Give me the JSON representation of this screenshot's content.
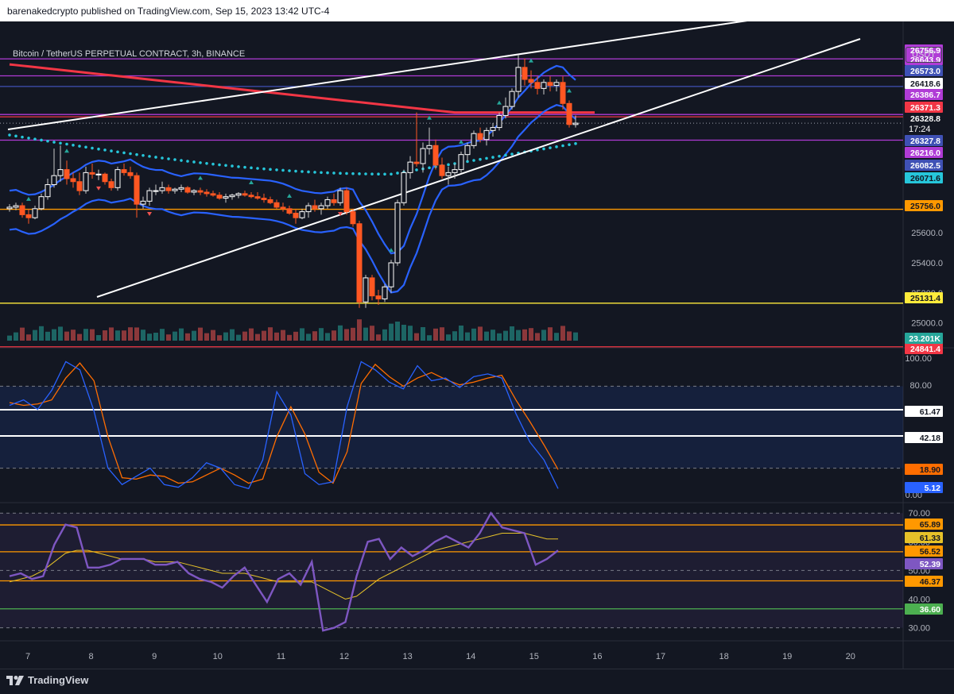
{
  "header": {
    "published_line": "barenakedcrypto published on TradingView.com, Sep 15, 2023 13:42 UTC-4"
  },
  "chart": {
    "symbol_title": "Bitcoin / TetherUS PERPETUAL CONTRACT, 3h, BINANCE",
    "currency_button": "USDT",
    "countdown": "17:24"
  },
  "footer": {
    "brand": "TradingView"
  },
  "colors": {
    "background": "#131722",
    "candle_up": "#ffffff",
    "candle_down": "#ff5722",
    "volume_up": "#26a69a",
    "volume_down": "#ef5350",
    "ma_red": "#f23645",
    "band_blue": "#2962ff",
    "dots_cyan": "#26c6da",
    "stoch_k": "#2962ff",
    "stoch_d": "#ff6d00",
    "rsi": "#7e57c2",
    "rsi_ma": "#e6c229",
    "level_magenta": "#b03bd6",
    "level_orange": "#ff9800",
    "level_yellow": "#ffeb3b",
    "level_green": "#4caf50"
  },
  "chart_data": [
    {
      "type": "candlestick",
      "title": "Bitcoin / TetherUS PERPETUAL CONTRACT, 3h, BINANCE",
      "x_ticks": [
        "7",
        "8",
        "9",
        "10",
        "11",
        "12",
        "13",
        "14",
        "15",
        "16",
        "17",
        "18",
        "19",
        "20"
      ],
      "y_ticks": [
        "25000.0",
        "25200.0",
        "25400.0",
        "25600.0",
        "25800.0"
      ],
      "ylim": [
        24840,
        26900
      ],
      "last_close": 26328.8,
      "ohlc": [
        [
          25760,
          25790,
          25740,
          25770
        ],
        [
          25770,
          25800,
          25750,
          25780
        ],
        [
          25780,
          25800,
          25700,
          25720
        ],
        [
          25720,
          25760,
          25660,
          25700
        ],
        [
          25700,
          25780,
          25690,
          25760
        ],
        [
          25760,
          25860,
          25750,
          25840
        ],
        [
          25840,
          25960,
          25820,
          25920
        ],
        [
          25920,
          26160,
          25900,
          25980
        ],
        [
          25980,
          26180,
          25940,
          26020
        ],
        [
          26020,
          26080,
          25920,
          25960
        ],
        [
          25960,
          26000,
          25900,
          25940
        ],
        [
          25940,
          26000,
          25850,
          25880
        ],
        [
          25880,
          26040,
          25860,
          26000
        ],
        [
          26000,
          26060,
          25960,
          25990
        ],
        [
          25990,
          26020,
          25950,
          25990
        ],
        [
          25990,
          26000,
          25920,
          25940
        ],
        [
          25940,
          25960,
          25880,
          25900
        ],
        [
          25900,
          26040,
          25880,
          26020
        ],
        [
          26020,
          26060,
          25980,
          26000
        ],
        [
          26000,
          26040,
          25960,
          25980
        ],
        [
          25980,
          26000,
          25700,
          25790
        ],
        [
          25790,
          25840,
          25760,
          25810
        ],
        [
          25810,
          25900,
          25780,
          25880
        ],
        [
          25880,
          25920,
          25850,
          25880
        ],
        [
          25880,
          25940,
          25860,
          25900
        ],
        [
          25900,
          25920,
          25860,
          25880
        ],
        [
          25880,
          25900,
          25860,
          25890
        ],
        [
          25890,
          25920,
          25870,
          25900
        ],
        [
          25900,
          25910,
          25860,
          25870
        ],
        [
          25870,
          25890,
          25850,
          25880
        ],
        [
          25880,
          25900,
          25850,
          25870
        ],
        [
          25870,
          25890,
          25840,
          25860
        ],
        [
          25860,
          25880,
          25840,
          25850
        ],
        [
          25850,
          25870,
          25820,
          25830
        ],
        [
          25830,
          25860,
          25800,
          25840
        ],
        [
          25840,
          25860,
          25820,
          25850
        ],
        [
          25850,
          25870,
          25830,
          25860
        ],
        [
          25860,
          25880,
          25840,
          25850
        ],
        [
          25850,
          25870,
          25830,
          25840
        ],
        [
          25840,
          25870,
          25820,
          25830
        ],
        [
          25830,
          25860,
          25800,
          25820
        ],
        [
          25820,
          25840,
          25790,
          25800
        ],
        [
          25800,
          25820,
          25760,
          25770
        ],
        [
          25770,
          25800,
          25740,
          25760
        ],
        [
          25760,
          25780,
          25720,
          25730
        ],
        [
          25730,
          25760,
          25660,
          25700
        ],
        [
          25700,
          25760,
          25690,
          25740
        ],
        [
          25740,
          25800,
          25700,
          25780
        ],
        [
          25780,
          25820,
          25740,
          25760
        ],
        [
          25760,
          25800,
          25720,
          25780
        ],
        [
          25780,
          25840,
          25760,
          25820
        ],
        [
          25820,
          25860,
          25780,
          25800
        ],
        [
          25800,
          25900,
          25780,
          25880
        ],
        [
          25880,
          25900,
          25720,
          25740
        ],
        [
          25740,
          25760,
          25640,
          25660
        ],
        [
          25660,
          25680,
          25100,
          25140
        ],
        [
          25140,
          25320,
          25100,
          25300
        ],
        [
          25300,
          25320,
          25150,
          25180
        ],
        [
          25180,
          25220,
          25120,
          25160
        ],
        [
          25160,
          25260,
          25140,
          25240
        ],
        [
          25240,
          25420,
          25200,
          25400
        ],
        [
          25400,
          25820,
          25380,
          25800
        ],
        [
          25800,
          26020,
          25780,
          26000
        ],
        [
          26000,
          26110,
          25960,
          26070
        ],
        [
          26070,
          26400,
          26040,
          26060
        ],
        [
          26060,
          26200,
          26000,
          26160
        ],
        [
          26160,
          26300,
          26120,
          26180
        ],
        [
          26180,
          26220,
          26020,
          26050
        ],
        [
          26050,
          26100,
          25960,
          25980
        ],
        [
          25980,
          26040,
          25920,
          26000
        ],
        [
          26000,
          26060,
          25960,
          26020
        ],
        [
          26020,
          26140,
          26000,
          26120
        ],
        [
          26120,
          26200,
          26080,
          26180
        ],
        [
          26180,
          26280,
          26160,
          26260
        ],
        [
          26260,
          26300,
          26200,
          26220
        ],
        [
          26220,
          26300,
          26180,
          26280
        ],
        [
          26280,
          26330,
          26240,
          26300
        ],
        [
          26300,
          26400,
          26280,
          26380
        ],
        [
          26380,
          26500,
          26360,
          26440
        ],
        [
          26440,
          26560,
          26420,
          26540
        ],
        [
          26540,
          26780,
          26500,
          26700
        ],
        [
          26700,
          26760,
          26580,
          26620
        ],
        [
          26620,
          26680,
          26560,
          26600
        ],
        [
          26600,
          26640,
          26520,
          26560
        ],
        [
          26560,
          26620,
          26520,
          26600
        ],
        [
          26600,
          26640,
          26540,
          26580
        ],
        [
          26580,
          26620,
          26540,
          26600
        ],
        [
          26600,
          26640,
          26420,
          26460
        ],
        [
          26460,
          26480,
          26300,
          26320
        ],
        [
          26320,
          26380,
          26300,
          26329
        ]
      ],
      "levels": [
        {
          "label": "26756.9",
          "value": 26756.9,
          "color": "#b03bd6"
        },
        {
          "label": "26643.9",
          "value": 26643.9,
          "color": "#b03bd6"
        },
        {
          "label": "26573.0",
          "value": 26573.0,
          "color": "#3f51b5"
        },
        {
          "label": "26418.6",
          "value": 26418.6,
          "color": "#ffffff"
        },
        {
          "label": "26386.7",
          "value": 26386.7,
          "color": "#b03bd6"
        },
        {
          "label": "26371.3",
          "value": 26371.3,
          "color": "#f23645"
        },
        {
          "label": "26328.8",
          "value": 26328.8,
          "color": "#ffffff"
        },
        {
          "label": "26327.8",
          "value": 26327.8,
          "color": "#3f51b5"
        },
        {
          "label": "26216.0",
          "value": 26216.0,
          "color": "#b03bd6"
        },
        {
          "label": "26082.5",
          "value": 26082.5,
          "color": "#3f51b5"
        },
        {
          "label": "26071.6",
          "value": 26071.6,
          "color": "#26c6da"
        },
        {
          "label": "25756.0",
          "value": 25756.0,
          "color": "#ff9800"
        },
        {
          "label": "25131.4",
          "value": 25131.4,
          "color": "#ffeb3b"
        },
        {
          "label": "24841.4",
          "value": 24841.4,
          "color": "#f23645"
        }
      ],
      "volume_label": "23.201K"
    },
    {
      "type": "line",
      "name": "Stochastic RSI",
      "y_ticks": [
        "100.00",
        "80.00",
        "0.00"
      ],
      "ylim": [
        0,
        100
      ],
      "k": [
        66,
        70,
        63,
        77,
        98,
        92,
        62,
        20,
        8,
        14,
        20,
        8,
        6,
        13,
        24,
        20,
        8,
        5,
        26,
        76,
        59,
        16,
        8,
        10,
        65,
        98,
        92,
        83,
        78,
        95,
        84,
        86,
        79,
        87,
        89,
        86,
        60,
        39,
        26,
        5
      ],
      "d": [
        68,
        66,
        67,
        70,
        86,
        97,
        84,
        43,
        13,
        12,
        15,
        14,
        9,
        10,
        15,
        20,
        15,
        9,
        12,
        43,
        65,
        45,
        17,
        9,
        32,
        82,
        96,
        87,
        80,
        86,
        90,
        85,
        81,
        83,
        86,
        88,
        70,
        54,
        37,
        19
      ],
      "values": [
        {
          "label": "61.47"
        },
        {
          "label": "42.18"
        },
        {
          "label": "18.90"
        },
        {
          "label": "5.12"
        }
      ]
    },
    {
      "type": "line",
      "name": "RSI",
      "y_ticks": [
        "70.00",
        "60.00",
        "50.00",
        "40.00",
        "30.00"
      ],
      "ylim": [
        26,
        72
      ],
      "rsi": [
        48,
        49,
        47,
        48,
        59,
        66,
        65,
        51,
        51,
        52,
        54,
        54,
        54,
        52,
        52,
        53,
        49,
        47,
        46,
        44,
        48,
        51,
        45,
        39,
        47,
        49,
        45,
        53,
        29,
        30,
        32,
        48,
        60,
        61,
        54,
        58,
        55,
        57,
        60,
        62,
        60,
        58,
        63,
        70,
        65,
        64,
        63,
        52,
        54,
        57
      ],
      "ma": [
        46,
        47,
        48,
        50,
        53,
        56,
        57,
        57,
        56,
        55,
        54,
        54,
        54,
        53,
        53,
        53,
        52,
        51,
        50,
        49,
        49,
        49,
        48,
        47,
        46,
        46,
        46,
        46,
        44,
        42,
        40,
        41,
        44,
        47,
        49,
        51,
        53,
        55,
        57,
        58,
        59,
        60,
        61,
        62,
        63,
        63,
        63,
        62,
        61,
        61
      ],
      "levels": [
        {
          "label": "65.89",
          "value": 65.89,
          "color": "#ff9800"
        },
        {
          "label": "61.33",
          "value": 61.33,
          "color": "#e6c229"
        },
        {
          "label": "56.52",
          "value": 56.52,
          "color": "#ff9800"
        },
        {
          "label": "52.39",
          "value": 52.39,
          "color": "#7e57c2"
        },
        {
          "label": "46.37",
          "value": 46.37,
          "color": "#ff9800"
        },
        {
          "label": "36.60",
          "value": 36.6,
          "color": "#4caf50"
        }
      ]
    }
  ]
}
